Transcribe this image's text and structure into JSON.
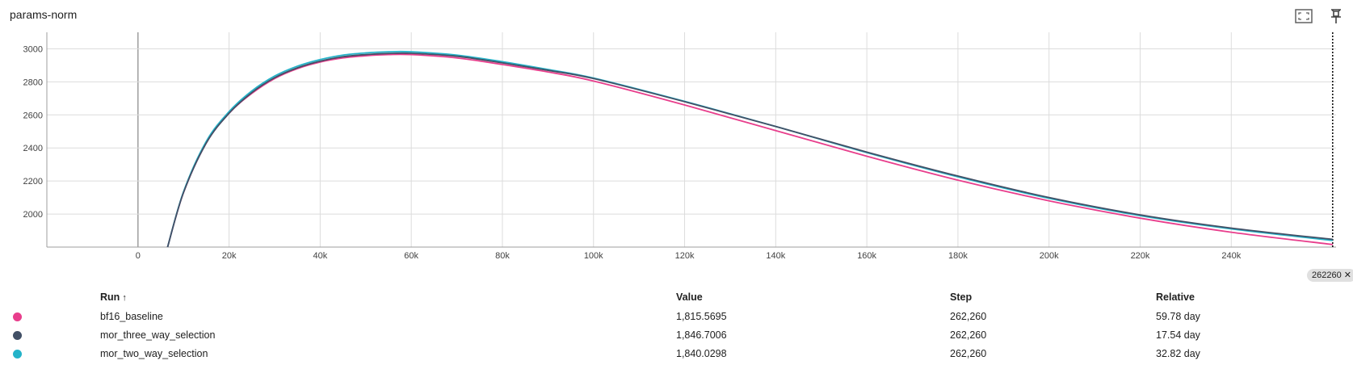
{
  "card": {
    "title": "params-norm",
    "icons": [
      "fullscreen-icon",
      "pin-icon"
    ]
  },
  "chart_data": {
    "type": "line",
    "title": "params-norm",
    "xlabel": "",
    "ylabel": "",
    "xlim": [
      -20000,
      263000
    ],
    "ylim": [
      1800,
      3100
    ],
    "x_ticks": [
      0,
      20000,
      40000,
      60000,
      80000,
      100000,
      120000,
      140000,
      160000,
      180000,
      200000,
      220000,
      240000
    ],
    "x_tick_labels": [
      "0",
      "20k",
      "40k",
      "60k",
      "80k",
      "100k",
      "120k",
      "140k",
      "160k",
      "180k",
      "200k",
      "220k",
      "240k"
    ],
    "y_ticks": [
      2000,
      2200,
      2400,
      2600,
      2800,
      3000
    ],
    "y_tick_labels": [
      "2000",
      "2200",
      "2400",
      "2600",
      "2800",
      "3000"
    ],
    "grid": true,
    "cursor_step": 262260,
    "series": [
      {
        "name": "bf16_baseline",
        "color": "#e83e8c",
        "x": [
          6500,
          10000,
          15000,
          20000,
          25000,
          30000,
          35000,
          40000,
          45000,
          50000,
          55000,
          60000,
          70000,
          80000,
          90000,
          100000,
          120000,
          140000,
          160000,
          180000,
          200000,
          220000,
          240000,
          262260
        ],
        "y": [
          1800,
          2130,
          2430,
          2610,
          2730,
          2820,
          2880,
          2920,
          2945,
          2958,
          2965,
          2965,
          2945,
          2905,
          2860,
          2805,
          2660,
          2505,
          2350,
          2205,
          2080,
          1975,
          1890,
          1815.5695
        ]
      },
      {
        "name": "mor_three_way_selection",
        "color": "#425066",
        "x": [
          6500,
          10000,
          15000,
          20000,
          25000,
          30000,
          35000,
          40000,
          45000,
          50000,
          55000,
          60000,
          70000,
          80000,
          90000,
          100000,
          120000,
          140000,
          160000,
          180000,
          200000,
          220000,
          240000,
          262260
        ],
        "y": [
          1800,
          2130,
          2430,
          2610,
          2735,
          2825,
          2885,
          2925,
          2952,
          2965,
          2972,
          2973,
          2955,
          2915,
          2870,
          2820,
          2680,
          2530,
          2375,
          2230,
          2100,
          1995,
          1915,
          1846.7006
        ]
      },
      {
        "name": "mor_two_way_selection",
        "color": "#24b3c9",
        "x": [
          6500,
          10000,
          15000,
          20000,
          25000,
          30000,
          35000,
          40000,
          45000,
          50000,
          55000,
          60000,
          70000,
          80000,
          90000,
          100000,
          120000,
          140000,
          160000,
          180000,
          200000,
          220000,
          240000,
          262260
        ],
        "y": [
          1800,
          2135,
          2440,
          2620,
          2745,
          2835,
          2895,
          2935,
          2962,
          2975,
          2982,
          2982,
          2962,
          2922,
          2875,
          2823,
          2682,
          2530,
          2372,
          2225,
          2095,
          1990,
          1910,
          1840.0298
        ]
      }
    ]
  },
  "step_chip": {
    "label": "262260",
    "close": "✕"
  },
  "table": {
    "headers": {
      "run": "Run",
      "sort_arrow": "↑",
      "value": "Value",
      "step": "Step",
      "relative": "Relative"
    },
    "rows": [
      {
        "color": "#e83e8c",
        "run": "bf16_baseline",
        "value": "1,815.5695",
        "step": "262,260",
        "relative": "59.78 day"
      },
      {
        "color": "#425066",
        "run": "mor_three_way_selection",
        "value": "1,846.7006",
        "step": "262,260",
        "relative": "17.54 day"
      },
      {
        "color": "#24b3c9",
        "run": "mor_two_way_selection",
        "value": "1,840.0298",
        "step": "262,260",
        "relative": "32.82 day"
      }
    ]
  }
}
